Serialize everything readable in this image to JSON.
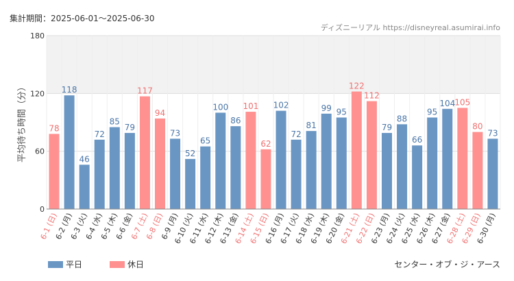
{
  "header": {
    "period_label": "集計期間：2025-06-01〜2025-06-30",
    "source": "ディズニーリアル https://disneyreal.asumirai.info",
    "attraction": "センター・オブ・ジ・アース"
  },
  "colors": {
    "weekday": "#6a96c4",
    "holiday": "#ff9191",
    "holiday_label": "#f07070",
    "band": "#f2f2f2",
    "grid": "#dddddd",
    "text": "#333333"
  },
  "chart_data": {
    "type": "bar",
    "ylabel": "平均待ち時間（分）",
    "ylim": [
      0,
      180
    ],
    "yticks": [
      "0",
      "60",
      "120",
      "180"
    ],
    "band": [
      120,
      180
    ],
    "legend": [
      {
        "key": "weekday",
        "label": "平日"
      },
      {
        "key": "holiday",
        "label": "休日"
      }
    ],
    "legend_position": "bottom-left",
    "categories": [
      "6-1 (日)",
      "6-2 (月)",
      "6-3 (火)",
      "6-4 (水)",
      "6-5 (木)",
      "6-6 (金)",
      "6-7 (土)",
      "6-8 (日)",
      "6-9 (月)",
      "6-10 (火)",
      "6-11 (水)",
      "6-12 (木)",
      "6-13 (金)",
      "6-14 (土)",
      "6-15 (日)",
      "6-16 (月)",
      "6-17 (火)",
      "6-18 (水)",
      "6-19 (木)",
      "6-20 (金)",
      "6-21 (土)",
      "6-22 (日)",
      "6-23 (月)",
      "6-24 (火)",
      "6-25 (水)",
      "6-26 (木)",
      "6-27 (金)",
      "6-28 (土)",
      "6-29 (日)",
      "6-30 (月)"
    ],
    "values": [
      78,
      118,
      46,
      72,
      85,
      79,
      117,
      94,
      73,
      52,
      65,
      100,
      86,
      101,
      62,
      102,
      72,
      81,
      99,
      95,
      122,
      112,
      79,
      88,
      66,
      95,
      104,
      105,
      80,
      73
    ],
    "holiday": [
      true,
      false,
      false,
      false,
      false,
      false,
      true,
      true,
      false,
      false,
      false,
      false,
      false,
      true,
      true,
      false,
      false,
      false,
      false,
      false,
      true,
      true,
      false,
      false,
      false,
      false,
      false,
      true,
      true,
      false
    ]
  }
}
